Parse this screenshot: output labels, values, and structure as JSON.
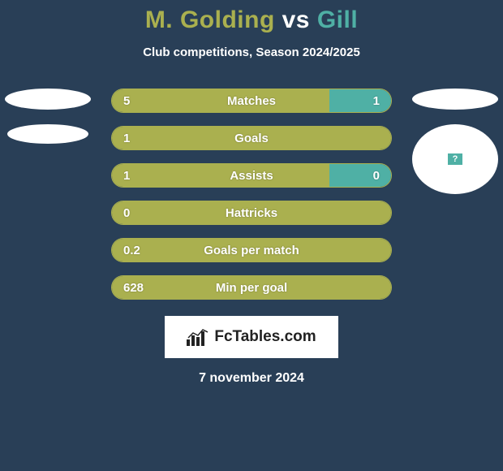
{
  "title": {
    "player1": "M. Golding",
    "vs": "vs",
    "player2": "Gill"
  },
  "subtitle": "Club competitions, Season 2024/2025",
  "colors": {
    "p1_fill": "#aab04f",
    "p1_border": "#aab04f",
    "p2_fill": "#4fb0a5",
    "p2_border": "#4fb0a5",
    "bg": "#293f57",
    "text": "#ffffff"
  },
  "stats": [
    {
      "label": "Matches",
      "v1": "5",
      "v2": "1",
      "pct1": 78,
      "pct2": 22
    },
    {
      "label": "Goals",
      "v1": "1",
      "v2": "",
      "pct1": 100,
      "pct2": 0
    },
    {
      "label": "Assists",
      "v1": "1",
      "v2": "0",
      "pct1": 78,
      "pct2": 22
    },
    {
      "label": "Hattricks",
      "v1": "0",
      "v2": "",
      "pct1": 100,
      "pct2": 0
    },
    {
      "label": "Goals per match",
      "v1": "0.2",
      "v2": "",
      "pct1": 100,
      "pct2": 0
    },
    {
      "label": "Min per goal",
      "v1": "628",
      "v2": "",
      "pct1": 100,
      "pct2": 0
    }
  ],
  "footer": {
    "brand": "FcTables.com",
    "date": "7 november 2024"
  }
}
